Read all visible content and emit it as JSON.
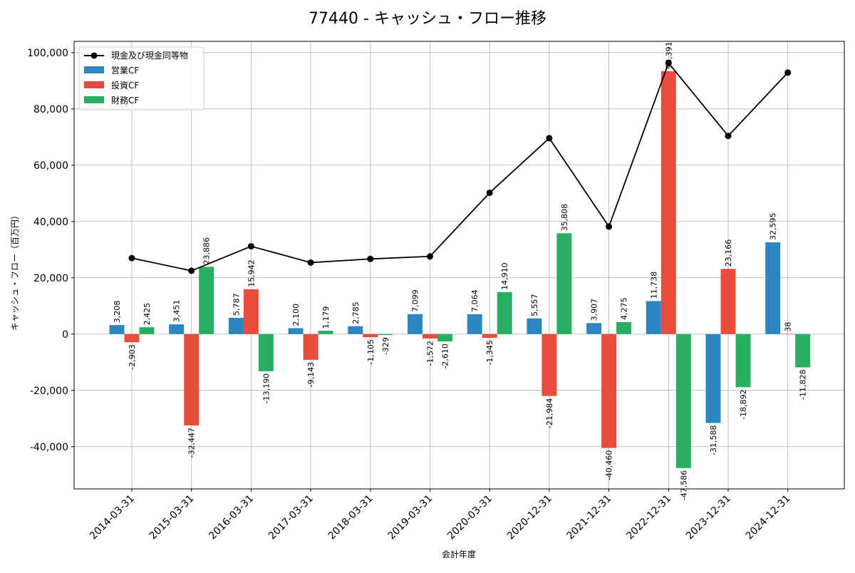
{
  "chart_data": {
    "type": "bar",
    "title": "77440 - キャッシュ・フロー推移",
    "xlabel": "会計年度",
    "ylabel": "キャッシュ・フロー（百万円）",
    "ylim": [
      -55000,
      104000
    ],
    "yticks": [
      -40000,
      -20000,
      0,
      20000,
      40000,
      60000,
      80000,
      100000
    ],
    "ytick_labels": [
      "-40,000",
      "-20,000",
      "0",
      "20,000",
      "40,000",
      "60,000",
      "80,000",
      "100,000"
    ],
    "grid": true,
    "legend_position": "top-left",
    "categories": [
      "2014-03-31",
      "2015-03-31",
      "2016-03-31",
      "2017-03-31",
      "2018-03-31",
      "2019-03-31",
      "2020-03-31",
      "2020-12-31",
      "2021-12-31",
      "2022-12-31",
      "2023-12-31",
      "2024-12-31"
    ],
    "series": [
      {
        "name": "営業CF",
        "kind": "bar",
        "color": "#2e86c1",
        "values": [
          3208,
          3451,
          5787,
          2100,
          2785,
          7099,
          7064,
          5557,
          3907,
          11738,
          -31588,
          32595
        ],
        "labels": [
          "3,208",
          "3,451",
          "5,787",
          "2,100",
          "2,785",
          "7,099",
          "7,064",
          "5,557",
          "3,907",
          "11,738",
          "-31,588",
          "32,595"
        ]
      },
      {
        "name": "投資CF",
        "kind": "bar",
        "color": "#e74c3c",
        "values": [
          -2903,
          -32447,
          15942,
          -9143,
          -1105,
          -1572,
          -1345,
          -21984,
          -40460,
          93391,
          23166,
          38
        ],
        "labels": [
          "-2,903",
          "-32,447",
          "15,942",
          "-9,143",
          "-1,105",
          "-1,572",
          "-1,345",
          "-21,984",
          "-40,460",
          "93,391",
          "23,166",
          "38"
        ]
      },
      {
        "name": "財務CF",
        "kind": "bar",
        "color": "#27ae60",
        "values": [
          2425,
          23886,
          -13190,
          1179,
          -329,
          -2610,
          14910,
          35808,
          4275,
          -47586,
          -18892,
          -11828
        ],
        "labels": [
          "2,425",
          "23,886",
          "-13,190",
          "1,179",
          "-329",
          "-2,610",
          "14,910",
          "35,808",
          "4,275",
          "-47,586",
          "-18,892",
          "-11,828"
        ]
      },
      {
        "name": "現金及び現金同等物",
        "kind": "line",
        "color": "#000000",
        "values": [
          27000,
          22500,
          31200,
          25400,
          26700,
          27600,
          50200,
          69600,
          38200,
          96300,
          70400,
          92900
        ]
      }
    ]
  }
}
